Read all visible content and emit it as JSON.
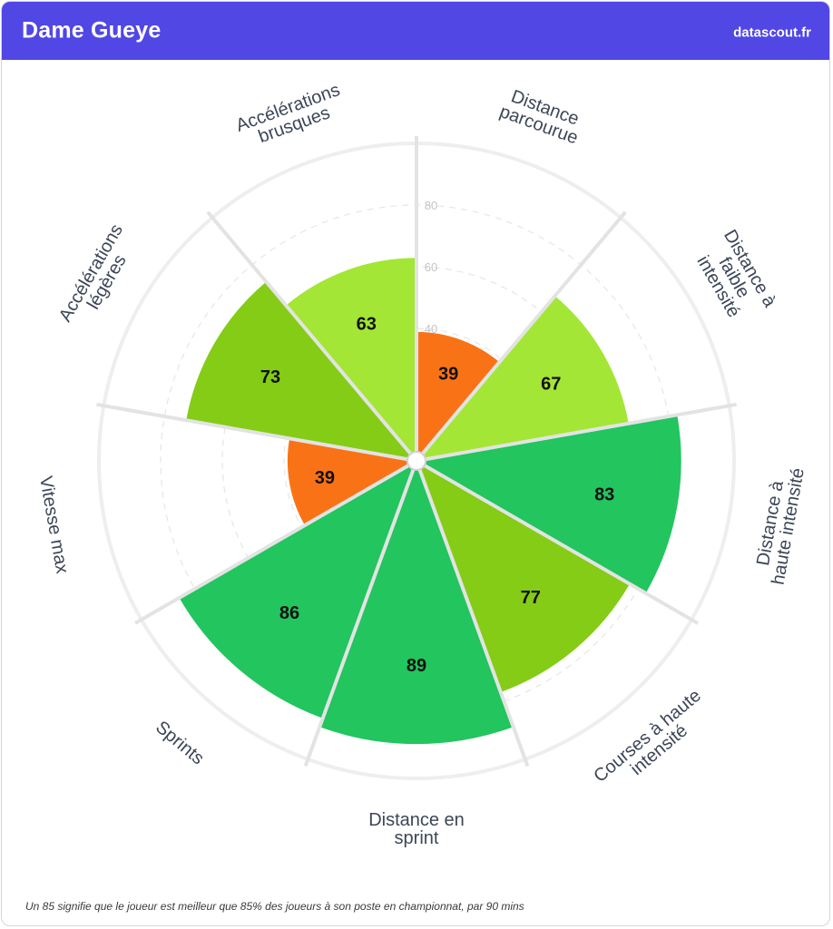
{
  "header": {
    "player_name": "Dame Gueye",
    "brand": "datascout.fr",
    "background_color": "#5047e5"
  },
  "footnote": "Un 85 signifie que le joueur est meilleur que 85% des joueurs à son poste en championnat, par 90 mins",
  "chart_data": {
    "type": "polar-bar",
    "title": "",
    "rlim": [
      0,
      100
    ],
    "r_ticks": [
      40,
      60,
      80
    ],
    "grid": true,
    "legend": "none",
    "categories": [
      [
        "Distance",
        "parcourue"
      ],
      [
        "Distance à",
        "faible",
        "intensité"
      ],
      [
        "Distance à",
        "haute intensité"
      ],
      [
        "Courses à haute",
        "intensité"
      ],
      [
        "Distance en",
        "sprint"
      ],
      [
        "Sprints"
      ],
      [
        "Vitesse max"
      ],
      [
        "Accélérations",
        "légères"
      ],
      [
        "Accélérations",
        "brusques"
      ]
    ],
    "values": [
      39,
      67,
      83,
      77,
      89,
      86,
      39,
      73,
      63
    ],
    "color_scale": [
      {
        "min": 0,
        "max": 50,
        "color": "#f97316"
      },
      {
        "min": 50,
        "max": 70,
        "color": "#a3e635"
      },
      {
        "min": 70,
        "max": 80,
        "color": "#84cc16"
      },
      {
        "min": 80,
        "max": 100,
        "color": "#22c55e"
      }
    ]
  }
}
